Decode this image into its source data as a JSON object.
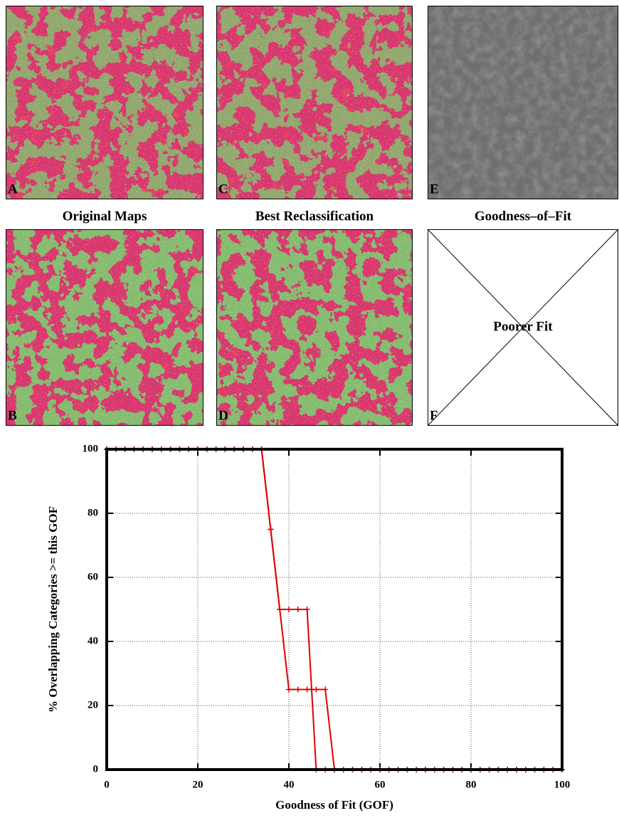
{
  "maps": {
    "labels": [
      "A",
      "B",
      "C",
      "D",
      "E",
      "F"
    ],
    "titles": [
      "Original Maps",
      "Best Reclassification",
      "Goodness–of–Fit"
    ],
    "placeholder": "Poorer Fit"
  },
  "chart_data": {
    "type": "line",
    "xlabel": "Goodness of Fit (GOF)",
    "ylabel": "% Overlapping Categories >= this GOF",
    "x": [
      0,
      2,
      4,
      6,
      8,
      10,
      12,
      14,
      16,
      18,
      20,
      22,
      24,
      26,
      28,
      30,
      32,
      34,
      36,
      38,
      40,
      42,
      44,
      46,
      48,
      50,
      52,
      54,
      56,
      58,
      60,
      62,
      64,
      66,
      68,
      70,
      72,
      74,
      76,
      78,
      80,
      82,
      84,
      86,
      88,
      90,
      92,
      94,
      96,
      98,
      100
    ],
    "series": [
      {
        "color": "#e00000",
        "values": [
          100,
          100,
          100,
          100,
          100,
          100,
          100,
          100,
          100,
          100,
          100,
          100,
          100,
          100,
          100,
          100,
          100,
          100,
          75,
          50,
          50,
          50,
          50,
          0,
          0,
          0,
          0,
          0,
          0,
          0,
          0,
          0,
          0,
          0,
          0,
          0,
          0,
          0,
          0,
          0,
          0,
          0,
          0,
          0,
          0,
          0,
          0,
          0,
          0,
          0,
          0
        ]
      },
      {
        "color": "#e00000",
        "values": [
          100,
          100,
          100,
          100,
          100,
          100,
          100,
          100,
          100,
          100,
          100,
          100,
          100,
          100,
          100,
          100,
          100,
          100,
          75,
          50,
          25,
          25,
          25,
          25,
          25,
          0,
          0,
          0,
          0,
          0,
          0,
          0,
          0,
          0,
          0,
          0,
          0,
          0,
          0,
          0,
          0,
          0,
          0,
          0,
          0,
          0,
          0,
          0,
          0,
          0,
          0
        ]
      }
    ],
    "xlim": [
      0,
      100
    ],
    "ylim": [
      0,
      100
    ],
    "xticks": [
      0,
      20,
      40,
      60,
      80,
      100
    ],
    "yticks": [
      0,
      20,
      40,
      60,
      80,
      100
    ],
    "grid": true
  }
}
